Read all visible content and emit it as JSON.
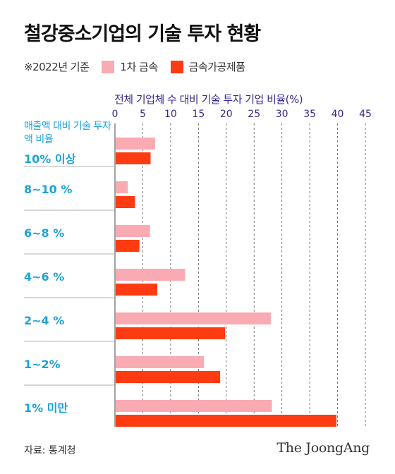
{
  "title": "철강중소기업의 기술 투자 현황",
  "legend": {
    "note": "※2022년 기준",
    "items": [
      {
        "label": "1차 금속",
        "color": "#f9aab2"
      },
      {
        "label": "금속가공제품",
        "color": "#ff3b12"
      }
    ]
  },
  "chart_data": {
    "type": "bar",
    "orientation": "horizontal",
    "title": "철강중소기업의 기술 투자 현황",
    "xlabel": "전체 기업체 수 대비 기술 투자 기업 비율(%)",
    "ylabel": "매출액 대비 기술 투자액 비율",
    "xlim": [
      0,
      45
    ],
    "xticks": [
      0,
      5,
      10,
      15,
      20,
      25,
      30,
      35,
      40,
      45
    ],
    "grid": "vertical dashed",
    "legend": "top-left",
    "categories": [
      "10% 이상",
      "8~10 %",
      "6~8 %",
      "4~6 %",
      "2~4 %",
      "1~2%",
      "1% 미만"
    ],
    "series": [
      {
        "name": "1차 금속",
        "color": "#f9aab2",
        "values": [
          7.2,
          2.3,
          6.3,
          12.6,
          28.0,
          16.0,
          28.2
        ]
      },
      {
        "name": "금속가공제품",
        "color": "#ff3b12",
        "values": [
          6.4,
          3.6,
          4.4,
          7.6,
          19.8,
          18.9,
          39.8
        ]
      }
    ]
  },
  "source": "자료: 통계청",
  "brand": "The JoongAng"
}
